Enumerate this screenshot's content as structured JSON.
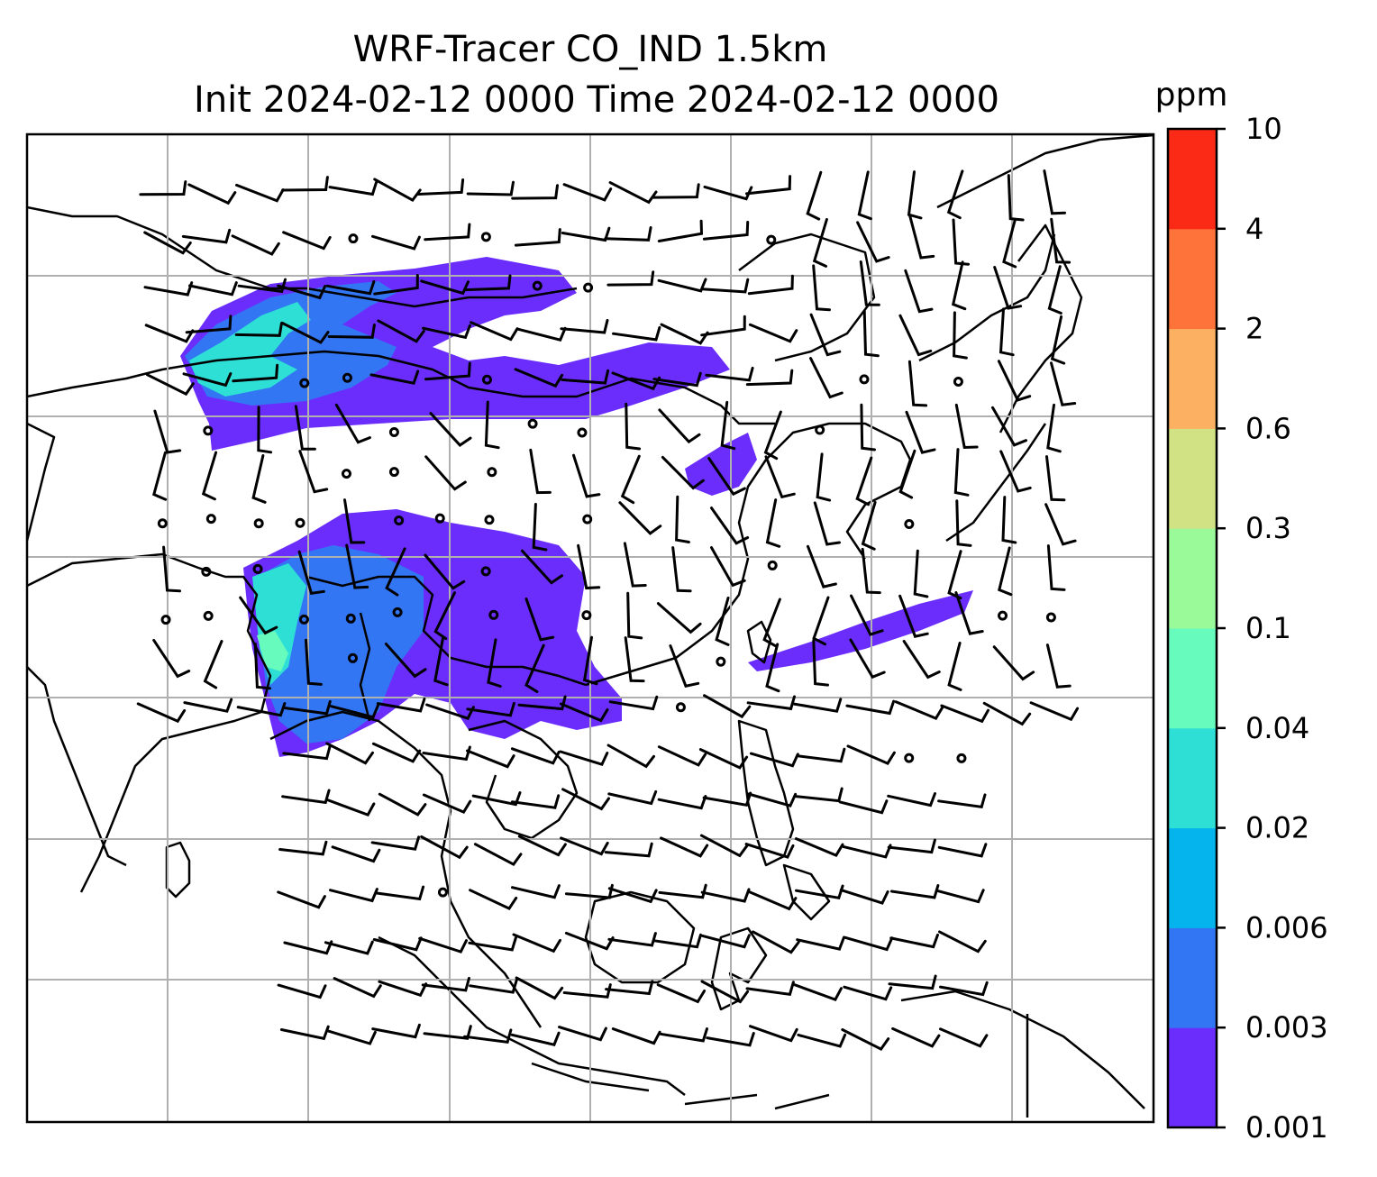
{
  "title": {
    "line1": "WRF-Tracer CO_IND 1.5km",
    "line2": "Init 2024-02-12 0000 Time 2024-02-12 0000"
  },
  "colorbar": {
    "unit": "ppm",
    "levels": [
      "0.001",
      "0.003",
      "0.006",
      "0.02",
      "0.04",
      "0.1",
      "0.3",
      "0.6",
      "2",
      "4",
      "10"
    ],
    "colors": [
      "#6a2dfb",
      "#3376f4",
      "#05b4ed",
      "#2edfd6",
      "#68fbbe",
      "#9afa9a",
      "#d0e283",
      "#fcb162",
      "#fe733a",
      "#fa2a17"
    ]
  },
  "map": {
    "gridlines": "on",
    "gridline_color": "#b0b0b0",
    "coastline_color": "#000000",
    "wind_barb_color": "#000000"
  }
}
